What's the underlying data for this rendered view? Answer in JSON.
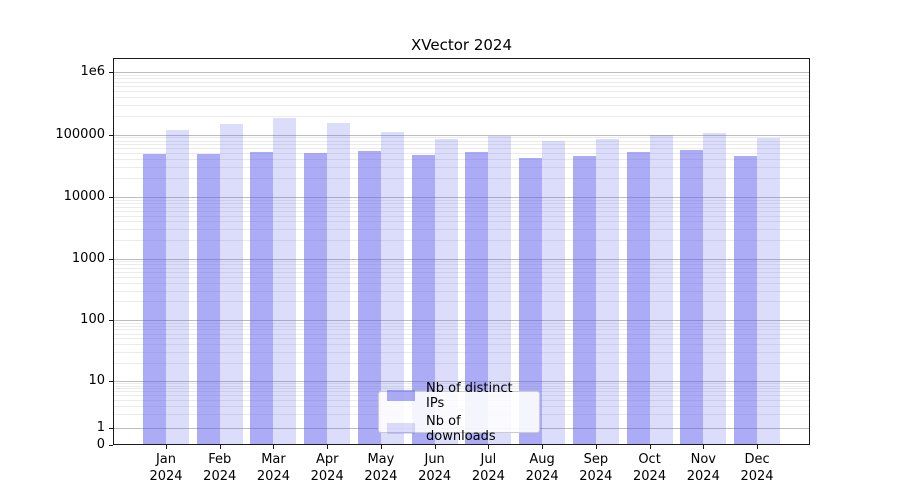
{
  "chart_data": {
    "type": "bar",
    "title": "XVector 2024",
    "yscale": "symlog",
    "ylim": [
      0,
      1000000
    ],
    "grid": true,
    "legend_position": "lower center",
    "categories": [
      "Jan 2024",
      "Feb 2024",
      "Mar 2024",
      "Apr 2024",
      "May 2024",
      "Jun 2024",
      "Jul 2024",
      "Aug 2024",
      "Sep 2024",
      "Oct 2024",
      "Nov 2024",
      "Dec 2024"
    ],
    "y_ticks": [
      {
        "label": "0",
        "value": 0
      },
      {
        "label": "1",
        "value": 1
      },
      {
        "label": "10",
        "value": 10
      },
      {
        "label": "100",
        "value": 100
      },
      {
        "label": "1000",
        "value": 1000
      },
      {
        "label": "10000",
        "value": 10000
      },
      {
        "label": "100000",
        "value": 100000
      },
      {
        "label": "1e6",
        "value": 1000000
      }
    ],
    "series": [
      {
        "name": "Nb of distinct IPs",
        "color": "rgba(88,88,238,0.50)",
        "values": [
          49000,
          49000,
          52000,
          51000,
          55000,
          47000,
          52000,
          42000,
          45000,
          52000,
          56000,
          46000
        ]
      },
      {
        "name": "Nb of downloads",
        "color": "rgba(88,88,238,0.21)",
        "values": [
          120000,
          145000,
          185000,
          152000,
          110000,
          86000,
          93000,
          79000,
          84000,
          99000,
          105000,
          89000
        ]
      }
    ]
  }
}
